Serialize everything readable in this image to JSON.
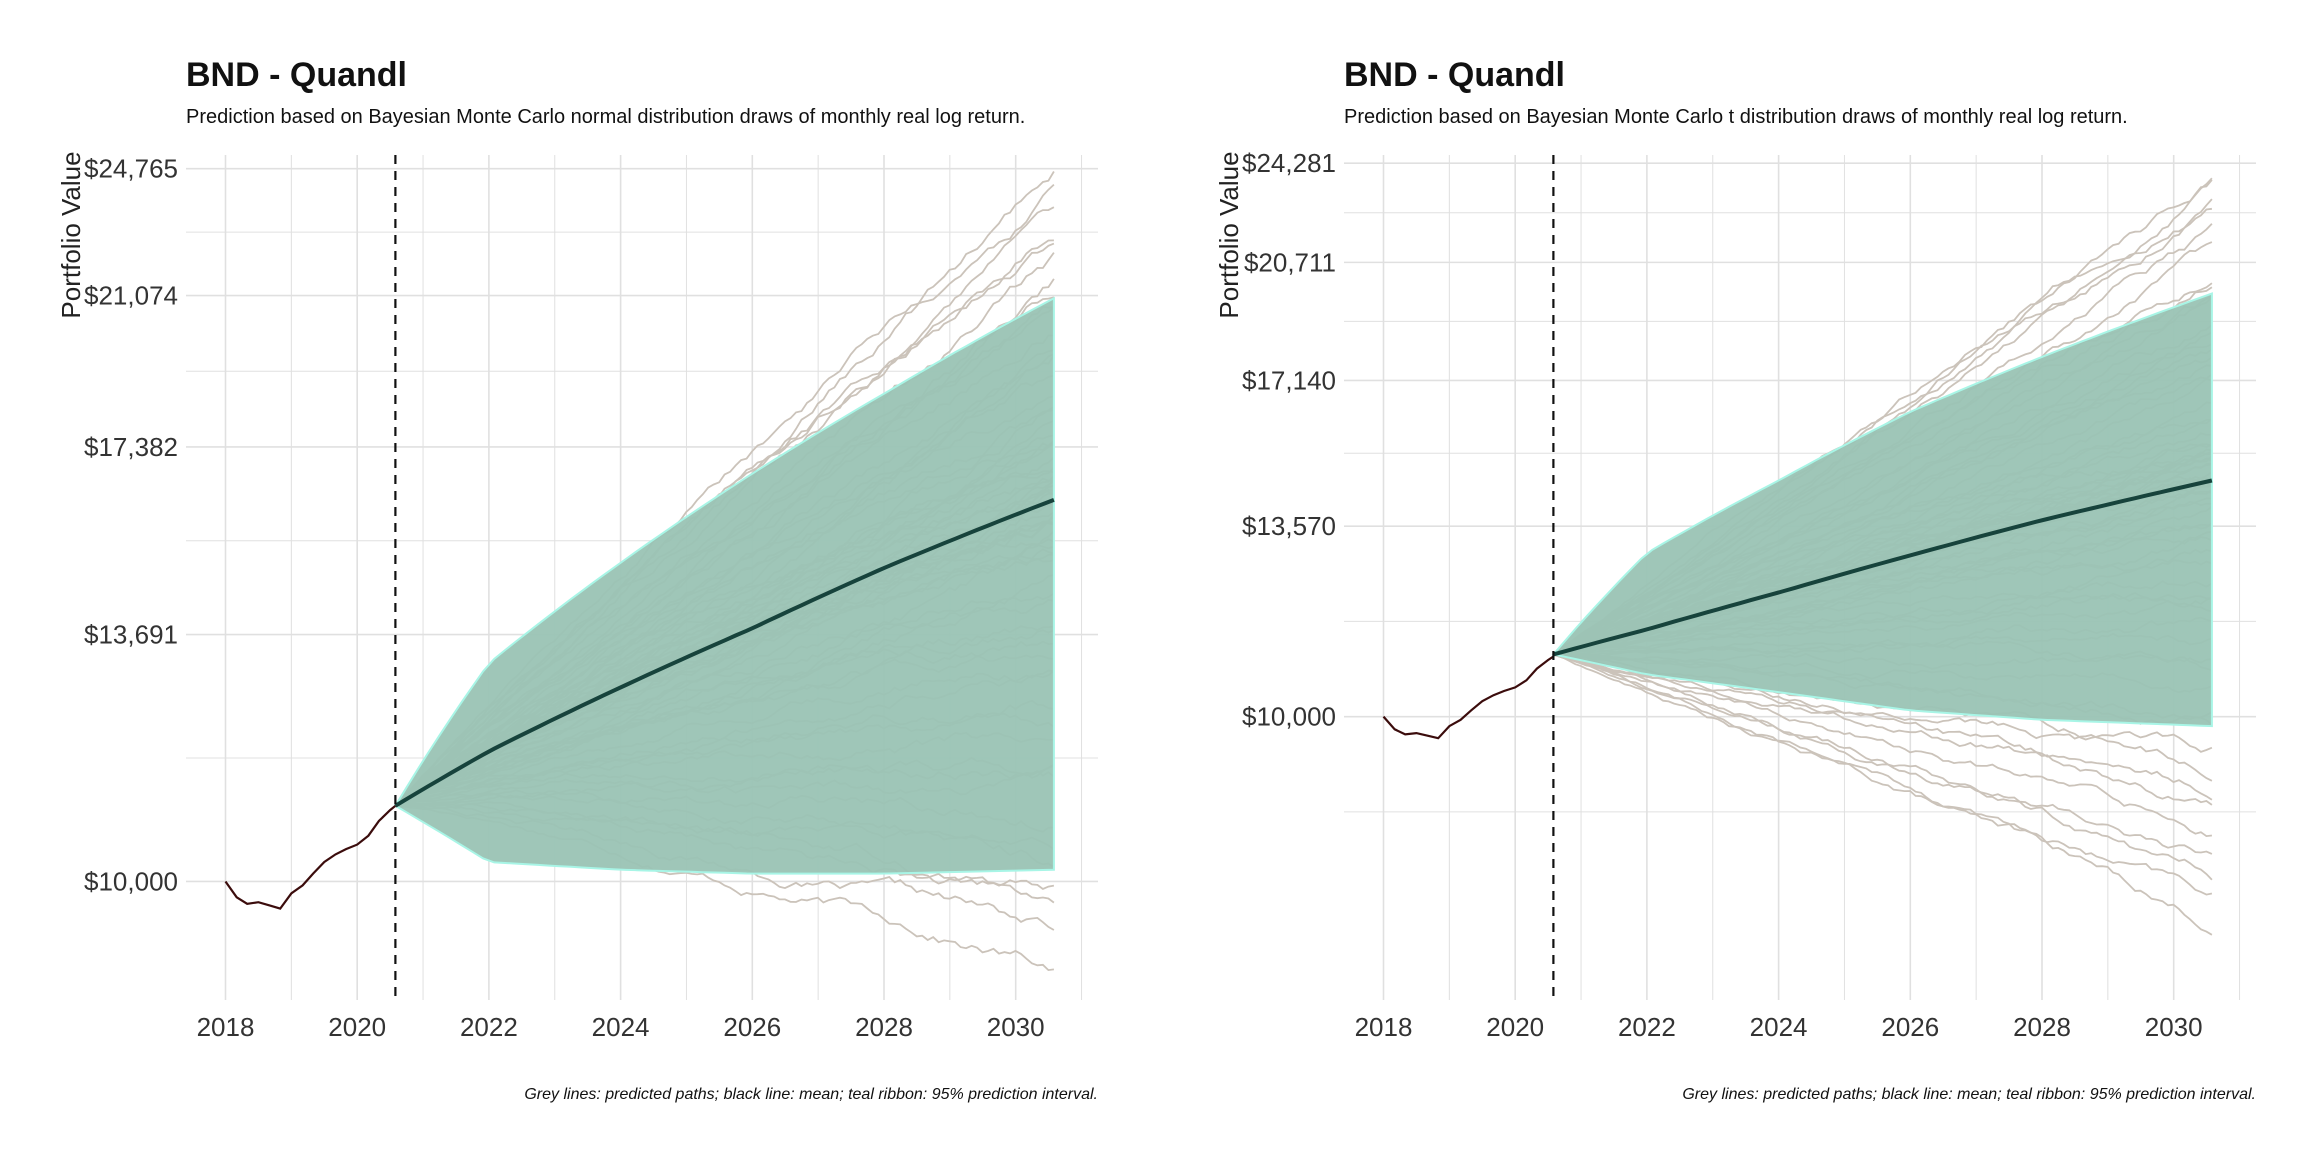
{
  "chart_data": [
    {
      "type": "line",
      "title": "BND - Quandl",
      "subtitle": "Prediction based on Bayesian Monte Carlo normal distribution draws of monthly real log return.",
      "ylabel": "Portfolio Value",
      "caption": "Grey lines: predicted paths; black line: mean; teal ribbon: 95% prediction interval.",
      "y_scale": "log",
      "grid": true,
      "xlim": [
        2017.4,
        2031.25
      ],
      "ylim": [
        8600,
        25200
      ],
      "x_ticks": [
        2018,
        2020,
        2022,
        2024,
        2026,
        2028,
        2030
      ],
      "x_tick_labels": [
        "2018",
        "2020",
        "2022",
        "2024",
        "2026",
        "2028",
        "2030"
      ],
      "y_ticks": [
        10000,
        13691,
        17382,
        21074,
        24765
      ],
      "y_tick_labels": [
        "$10,000",
        "$13,691",
        "$17,382",
        "$21,074",
        "$24,765"
      ],
      "forecast_start": 2020.58,
      "series": [
        {
          "label": "history",
          "x": [
            2018.0,
            2018.17,
            2018.33,
            2018.5,
            2018.67,
            2018.83,
            2019.0,
            2019.17,
            2019.33,
            2019.5,
            2019.67,
            2019.83,
            2020.0,
            2020.17,
            2020.33,
            2020.5,
            2020.58
          ],
          "y": [
            10000,
            9800,
            9720,
            9740,
            9700,
            9660,
            9850,
            9950,
            10100,
            10250,
            10350,
            10420,
            10480,
            10600,
            10800,
            10950,
            11010
          ]
        },
        {
          "label": "mean",
          "x": [
            2020.58,
            2022,
            2024,
            2026,
            2028,
            2030.58
          ],
          "y": [
            11010,
            11800,
            12800,
            13800,
            14900,
            16250
          ]
        }
      ],
      "ribbon_95": {
        "x": [
          2020.58,
          2022,
          2024,
          2026,
          2028,
          2030.58
        ],
        "lower": [
          11010,
          10250,
          10150,
          10100,
          10100,
          10150
        ],
        "upper": [
          11010,
          13200,
          15000,
          16800,
          18600,
          21000
        ]
      },
      "sim_paths": {
        "count": 70,
        "end_min": 8850,
        "end_max": 24765
      },
      "colors": {
        "history": "#3b0c0c",
        "mean": "#17433c",
        "ribbon": "#9ac3b4",
        "ribbon_highlight": "#a8f5e6",
        "paths": "#cbc3ba",
        "grid": "#e0e0e0",
        "vline": "#111111"
      }
    },
    {
      "type": "line",
      "title": "BND - Quandl",
      "subtitle": "Prediction based on Bayesian Monte Carlo t distribution draws of monthly real log return.",
      "ylabel": "Portfolio Value",
      "caption": "Grey lines: predicted paths; black line: mean; teal ribbon: 95% prediction interval.",
      "y_scale": "log",
      "grid": true,
      "xlim": [
        2017.4,
        2031.25
      ],
      "ylim": [
        6350,
        24600
      ],
      "x_ticks": [
        2018,
        2020,
        2022,
        2024,
        2026,
        2028,
        2030
      ],
      "x_tick_labels": [
        "2018",
        "2020",
        "2022",
        "2024",
        "2026",
        "2028",
        "2030"
      ],
      "y_ticks": [
        10000,
        13570,
        17140,
        20711,
        24281
      ],
      "y_tick_labels": [
        "$10,000",
        "$13,570",
        "$17,140",
        "$20,711",
        "$24,281"
      ],
      "forecast_start": 2020.58,
      "series": [
        {
          "label": "history",
          "x": [
            2018.0,
            2018.17,
            2018.33,
            2018.5,
            2018.67,
            2018.83,
            2019.0,
            2019.17,
            2019.33,
            2019.5,
            2019.67,
            2019.83,
            2020.0,
            2020.17,
            2020.33,
            2020.5,
            2020.58
          ],
          "y": [
            10000,
            9800,
            9720,
            9740,
            9700,
            9660,
            9850,
            9950,
            10100,
            10250,
            10350,
            10420,
            10480,
            10600,
            10800,
            10950,
            11010
          ]
        },
        {
          "label": "mean",
          "x": [
            2020.58,
            2022,
            2024,
            2026,
            2028,
            2030.58
          ],
          "y": [
            11050,
            11500,
            12200,
            12950,
            13700,
            14600
          ]
        }
      ],
      "ribbon_95": {
        "x": [
          2020.58,
          2022,
          2024,
          2026,
          2028,
          2030.58
        ],
        "lower": [
          11050,
          10700,
          10400,
          10100,
          9950,
          9850
        ],
        "upper": [
          11050,
          13000,
          14600,
          16300,
          17800,
          19700
        ]
      },
      "sim_paths": {
        "count": 70,
        "end_min": 7000,
        "end_max": 24281
      },
      "colors": {
        "history": "#3b0c0c",
        "mean": "#17433c",
        "ribbon": "#9ac3b4",
        "ribbon_highlight": "#a8f5e6",
        "paths": "#cbc3ba",
        "grid": "#e0e0e0",
        "vline": "#111111"
      }
    }
  ]
}
